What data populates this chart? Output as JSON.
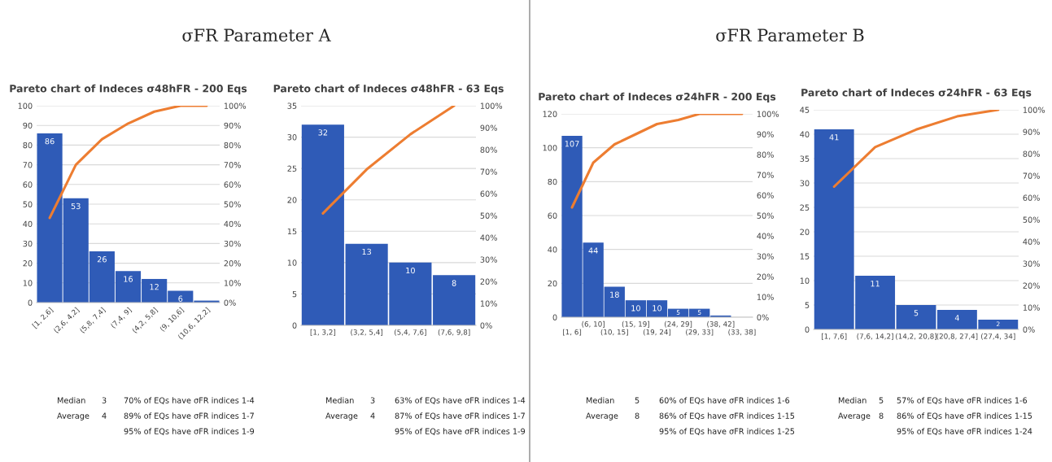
{
  "chart_data": [
    {
      "type": "bar",
      "subtitle": "σFR Parameter A",
      "title": "Pareto chart of Indeces σ48hFR - 200 Eqs",
      "categories": [
        "[1, 2,6]",
        "(2,6, 4,2]",
        "(5,8, 7,4]",
        "(7,4, 9]",
        "(4,2, 5,8]",
        "(9, 10,6]",
        "(10,6, 12,2]"
      ],
      "series": [
        {
          "color": "#2f5bb7",
          "values": [
            86,
            53,
            26,
            16,
            12,
            6,
            1
          ],
          "value_labels": [
            "86",
            "53",
            "26",
            "16",
            "12",
            "6",
            null
          ]
        },
        {
          "type": "line",
          "axis": "y2",
          "color": "#ed7d31",
          "values": [
            43,
            70,
            83,
            91,
            97,
            100,
            100
          ]
        }
      ],
      "ylim": [
        0,
        100
      ],
      "yticks": [
        0,
        10,
        20,
        30,
        40,
        50,
        60,
        70,
        80,
        90,
        100
      ],
      "y2lim": [
        0,
        100
      ],
      "y2ticks": [
        {
          "value": 0,
          "label": "0%"
        },
        {
          "value": 10,
          "label": "10%"
        },
        {
          "value": 20,
          "label": "20%"
        },
        {
          "value": 30,
          "label": "30%"
        },
        {
          "value": 40,
          "label": "40%"
        },
        {
          "value": 50,
          "label": "50%"
        },
        {
          "value": 60,
          "label": "60%"
        },
        {
          "value": 70,
          "label": "70%"
        },
        {
          "value": 80,
          "label": "80%"
        },
        {
          "value": 90,
          "label": "90%"
        },
        {
          "value": 100,
          "label": "100%"
        }
      ],
      "grid": "y",
      "marker": "none",
      "annotations": [
        "Median",
        "3",
        "70% of EQs have σFR indices 1-4",
        "Average",
        "4",
        "89% of EQs have σFR indices 1-7",
        "95% of EQs have σFR indices 1-9"
      ]
    },
    {
      "type": "bar",
      "title": "Pareto chart of Indeces σ48hFR - 63 Eqs",
      "categories": [
        "[1, 3,2]",
        "(3,2, 5,4]",
        "(5,4, 7,6]",
        "(7,6, 9,8]"
      ],
      "series": [
        {
          "color": "#2f5bb7",
          "values": [
            32,
            13,
            10,
            8
          ],
          "value_labels": [
            "32",
            "13",
            "10",
            "8"
          ]
        },
        {
          "type": "line",
          "axis": "y2",
          "color": "#ed7d31",
          "values": [
            51,
            71,
            87,
            100
          ]
        }
      ],
      "ylim": [
        0,
        35
      ],
      "yticks": [
        0,
        5,
        10,
        15,
        20,
        25,
        30,
        35
      ],
      "y2lim": [
        0,
        100
      ],
      "y2ticks": [
        {
          "value": 0,
          "label": "0%"
        },
        {
          "value": 10,
          "label": "10%"
        },
        {
          "value": 20,
          "label": "20%"
        },
        {
          "value": 30,
          "label": "30%"
        },
        {
          "value": 40,
          "label": "40%"
        },
        {
          "value": 50,
          "label": "50%"
        },
        {
          "value": 60,
          "label": "60%"
        },
        {
          "value": 70,
          "label": "70%"
        },
        {
          "value": 80,
          "label": "80%"
        },
        {
          "value": 90,
          "label": "90%"
        },
        {
          "value": 100,
          "label": "100%"
        }
      ],
      "grid": "y",
      "marker": "none",
      "annotations": [
        "Median",
        "3",
        "63% of EQs have σFR indices 1-4",
        "Average",
        "4",
        "87% of EQs have σFR indices 1-7",
        "95% of EQs have σFR indices 1-9"
      ]
    },
    {
      "type": "bar",
      "subtitle": "σFR Parameter B",
      "title": "Pareto chart of Indeces σ24hFR - 200 Eqs",
      "categories": [
        "[1, 6]",
        "(6, 10]",
        "(10, 15]",
        "(15, 19]",
        "(19, 24]",
        "(24, 29]",
        "(29, 33]",
        "(38, 42]",
        "(33, 38]"
      ],
      "series": [
        {
          "color": "#2f5bb7",
          "values": [
            107,
            44,
            18,
            10,
            10,
            5,
            5,
            1,
            0
          ],
          "value_labels": [
            "107",
            "44",
            "18",
            "10",
            "10",
            "5",
            "5",
            null,
            null
          ]
        },
        {
          "type": "line",
          "axis": "y2",
          "color": "#ed7d31",
          "values": [
            54,
            76,
            85,
            90,
            95,
            97,
            100,
            100,
            100
          ]
        }
      ],
      "ylim": [
        0,
        120
      ],
      "yticks": [
        0,
        20,
        40,
        60,
        80,
        100,
        120
      ],
      "y2lim": [
        0,
        100
      ],
      "y2ticks": [
        {
          "value": 0,
          "label": "0%"
        },
        {
          "value": 10,
          "label": "10%"
        },
        {
          "value": 20,
          "label": "20%"
        },
        {
          "value": 30,
          "label": "30%"
        },
        {
          "value": 40,
          "label": "40%"
        },
        {
          "value": 50,
          "label": "50%"
        },
        {
          "value": 60,
          "label": "60%"
        },
        {
          "value": 70,
          "label": "70%"
        },
        {
          "value": 80,
          "label": "80%"
        },
        {
          "value": 90,
          "label": "90%"
        },
        {
          "value": 100,
          "label": "100%"
        }
      ],
      "grid": "y",
      "marker": "none",
      "annotations": [
        "Median",
        "5",
        "60% of EQs have σFR indices 1-6",
        "Average",
        "8",
        "86% of EQs have σFR indices 1-15",
        "95% of EQs have σFR indices 1-25"
      ]
    },
    {
      "type": "bar",
      "title": "Pareto chart of Indeces σ24hFR - 63 Eqs",
      "categories": [
        "[1, 7,6]",
        "(7,6, 14,2]",
        "(14,2, 20,8]",
        "(20,8, 27,4]",
        "(27,4, 34]"
      ],
      "series": [
        {
          "color": "#2f5bb7",
          "values": [
            41,
            11,
            5,
            4,
            2
          ],
          "value_labels": [
            "41",
            "11",
            "5",
            "4",
            "2"
          ]
        },
        {
          "type": "line",
          "axis": "y2",
          "color": "#ed7d31",
          "values": [
            65,
            83,
            91,
            97,
            100
          ]
        }
      ],
      "ylim": [
        0,
        45
      ],
      "yticks": [
        0,
        5,
        10,
        15,
        20,
        25,
        30,
        35,
        40,
        45
      ],
      "y2lim": [
        0,
        100
      ],
      "y2ticks": [
        {
          "value": 0,
          "label": "0%"
        },
        {
          "value": 10,
          "label": "10%"
        },
        {
          "value": 20,
          "label": "20%"
        },
        {
          "value": 30,
          "label": "30%"
        },
        {
          "value": 40,
          "label": "40%"
        },
        {
          "value": 50,
          "label": "50%"
        },
        {
          "value": 60,
          "label": "60%"
        },
        {
          "value": 70,
          "label": "70%"
        },
        {
          "value": 80,
          "label": "80%"
        },
        {
          "value": 90,
          "label": "90%"
        },
        {
          "value": 100,
          "label": "100%"
        }
      ],
      "grid": "y",
      "marker": "none",
      "annotations": [
        "Median",
        "5",
        "57% of EQs have σFR indices 1-6",
        "Average",
        "8",
        "86% of EQs have σFR indices 1-15",
        "95% of EQs have σFR indices 1-24"
      ]
    }
  ]
}
